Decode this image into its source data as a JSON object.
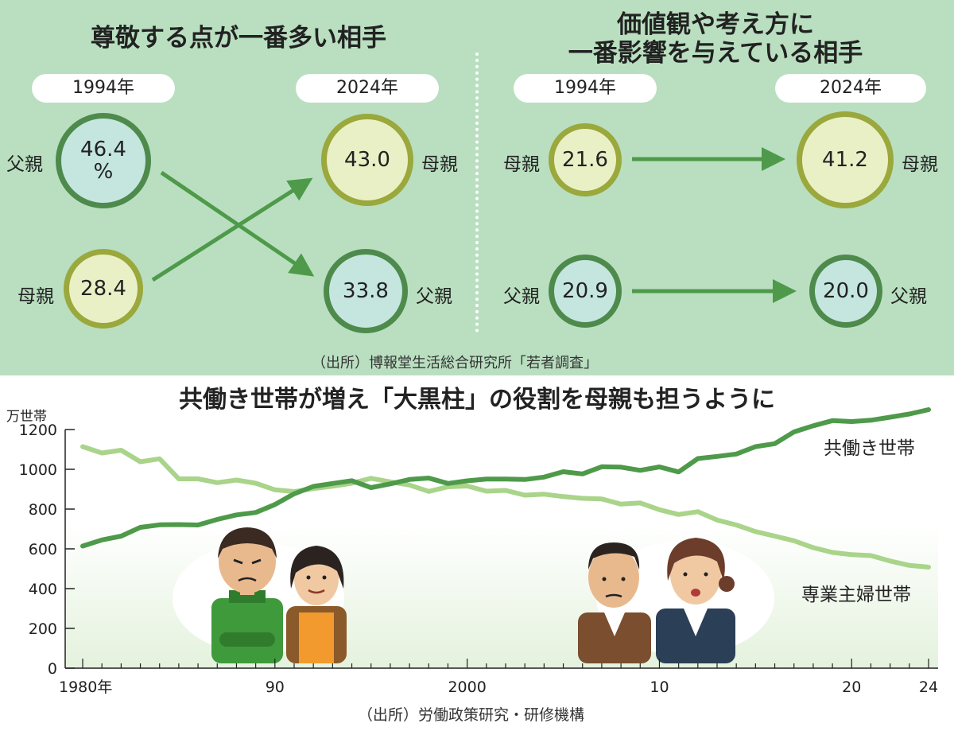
{
  "top": {
    "left": {
      "title": "尊敬する点が一番多い相手",
      "year_from": "1994年",
      "year_to": "2024年",
      "from": [
        {
          "label": "父親",
          "value": "46.4",
          "unit": "%"
        },
        {
          "label": "母親",
          "value": "28.4"
        }
      ],
      "to": [
        {
          "label": "母親",
          "value": "43.0"
        },
        {
          "label": "父親",
          "value": "33.8"
        }
      ]
    },
    "right": {
      "title_line1": "価値観や考え方に",
      "title_line2": "一番影響を与えている相手",
      "year_from": "1994年",
      "year_to": "2024年",
      "from": [
        {
          "label": "母親",
          "value": "21.6"
        },
        {
          "label": "父親",
          "value": "20.9"
        }
      ],
      "to": [
        {
          "label": "母親",
          "value": "41.2"
        },
        {
          "label": "父親",
          "value": "20.0"
        }
      ]
    },
    "source": "（出所）博報堂生活総合研究所「若者調査」"
  },
  "colors": {
    "panel": "#b9dfc0",
    "dual_line": "#4e9a4a",
    "homemaker_line": "#a9d48a",
    "arrow": "#4e9a4a"
  },
  "chart_data": {
    "type": "line",
    "title": "共働き世帯が増え「大黒柱」の役割を母親も担うように",
    "ylabel": "万世帯",
    "ylim": [
      0,
      1300
    ],
    "yticks": [
      0,
      200,
      400,
      600,
      800,
      1000,
      1200
    ],
    "xlim": [
      1980,
      2024
    ],
    "xticks": [
      {
        "x": 1980,
        "label": "1980年"
      },
      {
        "x": 1990,
        "label": "90"
      },
      {
        "x": 2000,
        "label": "2000"
      },
      {
        "x": 2010,
        "label": "10"
      },
      {
        "x": 2020,
        "label": "20"
      },
      {
        "x": 2024,
        "label": "24"
      }
    ],
    "x": [
      1980,
      1981,
      1982,
      1983,
      1984,
      1985,
      1986,
      1987,
      1988,
      1989,
      1990,
      1991,
      1992,
      1993,
      1994,
      1995,
      1996,
      1997,
      1998,
      1999,
      2000,
      2001,
      2002,
      2003,
      2004,
      2005,
      2006,
      2007,
      2008,
      2009,
      2010,
      2011,
      2012,
      2013,
      2014,
      2015,
      2016,
      2017,
      2018,
      2019,
      2020,
      2021,
      2022,
      2023,
      2024
    ],
    "series": [
      {
        "name": "共働き世帯",
        "values": [
          614,
          645,
          664,
          708,
          721,
          722,
          720,
          748,
          771,
          783,
          823,
          877,
          914,
          929,
          943,
          908,
          927,
          949,
          956,
          929,
          942,
          951,
          951,
          949,
          961,
          988,
          977,
          1013,
          1011,
          995,
          1012,
          987,
          1054,
          1065,
          1077,
          1114,
          1129,
          1188,
          1219,
          1245,
          1240,
          1247,
          1262,
          1278,
          1300
        ]
      },
      {
        "name": "専業主婦世帯",
        "values": [
          1114,
          1082,
          1096,
          1038,
          1053,
          952,
          952,
          933,
          946,
          930,
          897,
          888,
          903,
          915,
          930,
          955,
          937,
          921,
          889,
          912,
          916,
          890,
          894,
          870,
          875,
          863,
          854,
          851,
          825,
          831,
          797,
          773,
          787,
          745,
          720,
          687,
          664,
          641,
          606,
          582,
          571,
          566,
          539,
          517,
          508
        ]
      }
    ],
    "source": "（出所）労働政策研究・研修機構"
  }
}
